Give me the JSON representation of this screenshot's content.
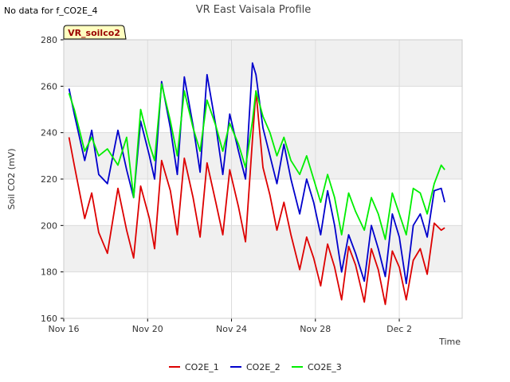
{
  "header": {
    "no_data_note": "No data for f_CO2E_4",
    "site_badge": "VR_soilco2"
  },
  "colors": {
    "band": "#f0f0f0",
    "grid": "#dcdcdc",
    "badge_fill": "#ffffc0",
    "badge_text": "#990000"
  },
  "chart_data": {
    "type": "line",
    "title": "VR East Vaisala Profile",
    "xlabel": "Time",
    "ylabel": "Soil CO2 (mV)",
    "x_unit": "date",
    "xlim": [
      "2023-11-16",
      "2023-12-05"
    ],
    "ylim": [
      160,
      280
    ],
    "y_ticks": [
      160,
      180,
      200,
      220,
      240,
      260,
      280
    ],
    "x_ticks": [
      {
        "date": "2023-11-16",
        "label": "Nov 16"
      },
      {
        "date": "2023-11-20",
        "label": "Nov 20"
      },
      {
        "date": "2023-11-24",
        "label": "Nov 24"
      },
      {
        "date": "2023-11-28",
        "label": "Nov 28"
      },
      {
        "date": "2023-12-02",
        "label": "Dec 2"
      }
    ],
    "grid": true,
    "legend_position": "bottom",
    "series": [
      {
        "name": "CO2E_1",
        "color": "#dd0000",
        "points": [
          [
            "2023-11-16T06:00",
            238
          ],
          [
            "2023-11-16T12:00",
            226
          ],
          [
            "2023-11-17T00:00",
            203
          ],
          [
            "2023-11-17T08:00",
            214
          ],
          [
            "2023-11-17T16:00",
            197
          ],
          [
            "2023-11-18T02:00",
            188
          ],
          [
            "2023-11-18T14:00",
            216
          ],
          [
            "2023-11-19T00:00",
            198
          ],
          [
            "2023-11-19T08:00",
            186
          ],
          [
            "2023-11-19T16:00",
            217
          ],
          [
            "2023-11-20T02:00",
            203
          ],
          [
            "2023-11-20T08:00",
            190
          ],
          [
            "2023-11-20T16:00",
            228
          ],
          [
            "2023-11-21T02:00",
            215
          ],
          [
            "2023-11-21T10:00",
            196
          ],
          [
            "2023-11-21T18:00",
            229
          ],
          [
            "2023-11-22T04:00",
            212
          ],
          [
            "2023-11-22T12:00",
            195
          ],
          [
            "2023-11-22T20:00",
            227
          ],
          [
            "2023-11-23T06:00",
            210
          ],
          [
            "2023-11-23T14:00",
            196
          ],
          [
            "2023-11-23T22:00",
            224
          ],
          [
            "2023-11-24T08:00",
            208
          ],
          [
            "2023-11-24T16:00",
            193
          ],
          [
            "2023-11-25T00:00",
            237
          ],
          [
            "2023-11-25T04:00",
            258
          ],
          [
            "2023-11-25T12:00",
            225
          ],
          [
            "2023-11-25T20:00",
            213
          ],
          [
            "2023-11-26T04:00",
            198
          ],
          [
            "2023-11-26T12:00",
            210
          ],
          [
            "2023-11-26T20:00",
            196
          ],
          [
            "2023-11-27T06:00",
            181
          ],
          [
            "2023-11-27T14:00",
            195
          ],
          [
            "2023-11-27T22:00",
            186
          ],
          [
            "2023-11-28T06:00",
            174
          ],
          [
            "2023-11-28T14:00",
            192
          ],
          [
            "2023-11-28T22:00",
            182
          ],
          [
            "2023-11-29T06:00",
            168
          ],
          [
            "2023-11-29T14:00",
            191
          ],
          [
            "2023-11-29T22:00",
            183
          ],
          [
            "2023-11-30T08:00",
            167
          ],
          [
            "2023-11-30T16:00",
            190
          ],
          [
            "2023-12-01T00:00",
            181
          ],
          [
            "2023-12-01T08:00",
            166
          ],
          [
            "2023-12-01T16:00",
            189
          ],
          [
            "2023-12-02T00:00",
            182
          ],
          [
            "2023-12-02T08:00",
            168
          ],
          [
            "2023-12-02T16:00",
            185
          ],
          [
            "2023-12-03T00:00",
            190
          ],
          [
            "2023-12-03T08:00",
            179
          ],
          [
            "2023-12-03T16:00",
            201
          ],
          [
            "2023-12-04T00:00",
            198
          ],
          [
            "2023-12-04T04:00",
            199
          ]
        ]
      },
      {
        "name": "CO2E_2",
        "color": "#0000cc",
        "points": [
          [
            "2023-11-16T06:00",
            259
          ],
          [
            "2023-11-16T12:00",
            248
          ],
          [
            "2023-11-17T00:00",
            228
          ],
          [
            "2023-11-17T08:00",
            241
          ],
          [
            "2023-11-17T16:00",
            222
          ],
          [
            "2023-11-18T02:00",
            218
          ],
          [
            "2023-11-18T14:00",
            241
          ],
          [
            "2023-11-19T00:00",
            224
          ],
          [
            "2023-11-19T08:00",
            212
          ],
          [
            "2023-11-19T16:00",
            245
          ],
          [
            "2023-11-20T02:00",
            230
          ],
          [
            "2023-11-20T08:00",
            220
          ],
          [
            "2023-11-20T16:00",
            262
          ],
          [
            "2023-11-21T02:00",
            242
          ],
          [
            "2023-11-21T10:00",
            222
          ],
          [
            "2023-11-21T18:00",
            264
          ],
          [
            "2023-11-22T04:00",
            243
          ],
          [
            "2023-11-22T12:00",
            223
          ],
          [
            "2023-11-22T20:00",
            265
          ],
          [
            "2023-11-23T06:00",
            243
          ],
          [
            "2023-11-23T14:00",
            222
          ],
          [
            "2023-11-23T22:00",
            248
          ],
          [
            "2023-11-24T08:00",
            232
          ],
          [
            "2023-11-24T16:00",
            220
          ],
          [
            "2023-11-25T00:00",
            270
          ],
          [
            "2023-11-25T04:00",
            265
          ],
          [
            "2023-11-25T12:00",
            242
          ],
          [
            "2023-11-25T20:00",
            230
          ],
          [
            "2023-11-26T04:00",
            218
          ],
          [
            "2023-11-26T12:00",
            235
          ],
          [
            "2023-11-26T20:00",
            220
          ],
          [
            "2023-11-27T06:00",
            205
          ],
          [
            "2023-11-27T14:00",
            220
          ],
          [
            "2023-11-27T22:00",
            210
          ],
          [
            "2023-11-28T06:00",
            196
          ],
          [
            "2023-11-28T14:00",
            215
          ],
          [
            "2023-11-28T22:00",
            200
          ],
          [
            "2023-11-29T06:00",
            180
          ],
          [
            "2023-11-29T14:00",
            196
          ],
          [
            "2023-11-29T22:00",
            188
          ],
          [
            "2023-11-30T08:00",
            176
          ],
          [
            "2023-11-30T16:00",
            200
          ],
          [
            "2023-12-01T00:00",
            190
          ],
          [
            "2023-12-01T08:00",
            178
          ],
          [
            "2023-12-01T16:00",
            205
          ],
          [
            "2023-12-02T00:00",
            195
          ],
          [
            "2023-12-02T08:00",
            175
          ],
          [
            "2023-12-02T16:00",
            200
          ],
          [
            "2023-12-03T00:00",
            205
          ],
          [
            "2023-12-03T08:00",
            195
          ],
          [
            "2023-12-03T16:00",
            215
          ],
          [
            "2023-12-04T00:00",
            216
          ],
          [
            "2023-12-04T04:00",
            210
          ]
        ]
      },
      {
        "name": "CO2E_3",
        "color": "#00ee00",
        "points": [
          [
            "2023-11-16T06:00",
            257
          ],
          [
            "2023-11-16T12:00",
            250
          ],
          [
            "2023-11-17T00:00",
            232
          ],
          [
            "2023-11-17T08:00",
            238
          ],
          [
            "2023-11-17T16:00",
            230
          ],
          [
            "2023-11-18T02:00",
            233
          ],
          [
            "2023-11-18T14:00",
            226
          ],
          [
            "2023-11-19T00:00",
            238
          ],
          [
            "2023-11-19T08:00",
            212
          ],
          [
            "2023-11-19T16:00",
            250
          ],
          [
            "2023-11-20T02:00",
            235
          ],
          [
            "2023-11-20T08:00",
            228
          ],
          [
            "2023-11-20T16:00",
            261
          ],
          [
            "2023-11-21T02:00",
            245
          ],
          [
            "2023-11-21T10:00",
            230
          ],
          [
            "2023-11-21T18:00",
            258
          ],
          [
            "2023-11-22T04:00",
            242
          ],
          [
            "2023-11-22T12:00",
            232
          ],
          [
            "2023-11-22T20:00",
            254
          ],
          [
            "2023-11-23T06:00",
            243
          ],
          [
            "2023-11-23T14:00",
            232
          ],
          [
            "2023-11-23T22:00",
            244
          ],
          [
            "2023-11-24T08:00",
            235
          ],
          [
            "2023-11-24T16:00",
            225
          ],
          [
            "2023-11-25T00:00",
            245
          ],
          [
            "2023-11-25T04:00",
            258
          ],
          [
            "2023-11-25T12:00",
            247
          ],
          [
            "2023-11-25T20:00",
            240
          ],
          [
            "2023-11-26T04:00",
            230
          ],
          [
            "2023-11-26T12:00",
            238
          ],
          [
            "2023-11-26T20:00",
            228
          ],
          [
            "2023-11-27T06:00",
            222
          ],
          [
            "2023-11-27T14:00",
            230
          ],
          [
            "2023-11-27T22:00",
            220
          ],
          [
            "2023-11-28T06:00",
            210
          ],
          [
            "2023-11-28T14:00",
            222
          ],
          [
            "2023-11-28T22:00",
            212
          ],
          [
            "2023-11-29T06:00",
            196
          ],
          [
            "2023-11-29T14:00",
            214
          ],
          [
            "2023-11-29T22:00",
            206
          ],
          [
            "2023-11-30T08:00",
            198
          ],
          [
            "2023-11-30T16:00",
            212
          ],
          [
            "2023-12-01T00:00",
            205
          ],
          [
            "2023-12-01T08:00",
            194
          ],
          [
            "2023-12-01T16:00",
            214
          ],
          [
            "2023-12-02T00:00",
            205
          ],
          [
            "2023-12-02T08:00",
            196
          ],
          [
            "2023-12-02T16:00",
            216
          ],
          [
            "2023-12-03T00:00",
            214
          ],
          [
            "2023-12-03T08:00",
            205
          ],
          [
            "2023-12-03T16:00",
            218
          ],
          [
            "2023-12-04T00:00",
            226
          ],
          [
            "2023-12-04T04:00",
            224
          ]
        ]
      }
    ]
  }
}
